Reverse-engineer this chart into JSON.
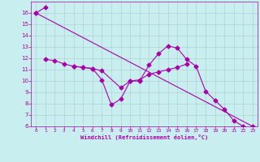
{
  "xlabel": "Windchill (Refroidissement éolien,°C)",
  "xlim": [
    -0.5,
    23.5
  ],
  "ylim": [
    6,
    17
  ],
  "yticks": [
    6,
    7,
    8,
    9,
    10,
    11,
    12,
    13,
    14,
    15,
    16
  ],
  "xticks": [
    0,
    1,
    2,
    3,
    4,
    5,
    6,
    7,
    8,
    9,
    10,
    11,
    12,
    13,
    14,
    15,
    16,
    17,
    18,
    19,
    20,
    21,
    22,
    23
  ],
  "background_color": "#c8eef0",
  "line_color": "#aa00aa",
  "grid_color": "#aacccc",
  "line1_x": [
    0,
    1
  ],
  "line1_y": [
    16.0,
    16.5
  ],
  "line2_x": [
    1,
    2,
    3,
    4,
    5,
    6,
    7,
    8,
    9,
    10,
    11,
    12,
    13,
    14,
    15,
    16,
    17,
    18,
    19,
    20,
    21,
    22
  ],
  "line2_y": [
    11.9,
    11.8,
    11.5,
    11.3,
    11.2,
    11.1,
    10.1,
    7.9,
    8.4,
    10.0,
    10.0,
    11.4,
    12.4,
    13.1,
    12.9,
    11.9,
    11.3,
    9.1,
    8.3,
    7.5,
    6.5,
    6.0
  ],
  "line3_x": [
    4,
    5,
    6,
    7,
    9,
    10,
    11,
    12,
    13,
    14,
    15,
    16
  ],
  "line3_y": [
    11.3,
    11.2,
    11.1,
    10.9,
    9.4,
    10.0,
    10.1,
    10.6,
    10.8,
    11.0,
    11.2,
    11.5
  ],
  "line4_x": [
    0,
    23
  ],
  "line4_y": [
    16.0,
    6.0
  ]
}
